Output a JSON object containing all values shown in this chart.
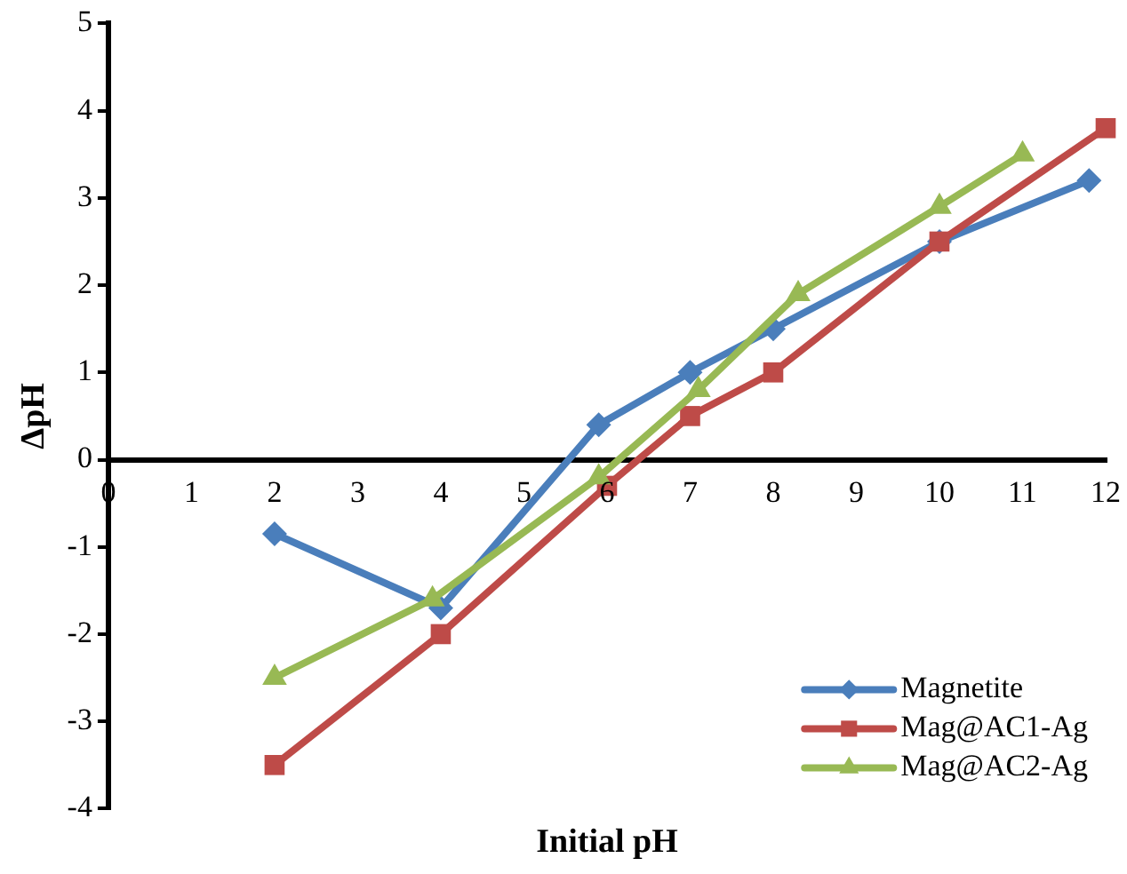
{
  "chart_data": {
    "type": "line",
    "xlabel": "Initial pH",
    "ylabel": "ΔpH",
    "xlim": [
      0,
      12
    ],
    "xticks": [
      0,
      1,
      2,
      3,
      4,
      5,
      6,
      7,
      8,
      9,
      10,
      11,
      12
    ],
    "ylim": [
      -4,
      5
    ],
    "yticks": [
      -4,
      -3,
      -2,
      -1,
      0,
      1,
      2,
      3,
      4,
      5
    ],
    "grid": false,
    "legend": "bottom right",
    "line_style": "solid",
    "series": [
      {
        "name": "Magnetite",
        "color": "#4a7ebb",
        "marker": "diamond",
        "x": [
          2,
          4,
          5.9,
          7,
          8,
          10,
          11.8
        ],
        "values": [
          -0.85,
          -1.7,
          0.4,
          1.0,
          1.5,
          2.5,
          3.2
        ]
      },
      {
        "name": "Mag@AC1-Ag",
        "color": "#be4b48",
        "marker": "square",
        "x": [
          2,
          4,
          6,
          7,
          8,
          10,
          12
        ],
        "values": [
          -3.5,
          -2,
          -0.3,
          0.5,
          1.0,
          2.5,
          3.8
        ]
      },
      {
        "name": "Mag@AC2-Ag",
        "color": "#98b954",
        "marker": "triangle",
        "x": [
          2,
          3.9,
          5.9,
          7.1,
          8.3,
          10,
          11
        ],
        "values": [
          -2.5,
          -1.6,
          -0.2,
          0.8,
          1.9,
          2.9,
          3.5
        ]
      }
    ]
  }
}
